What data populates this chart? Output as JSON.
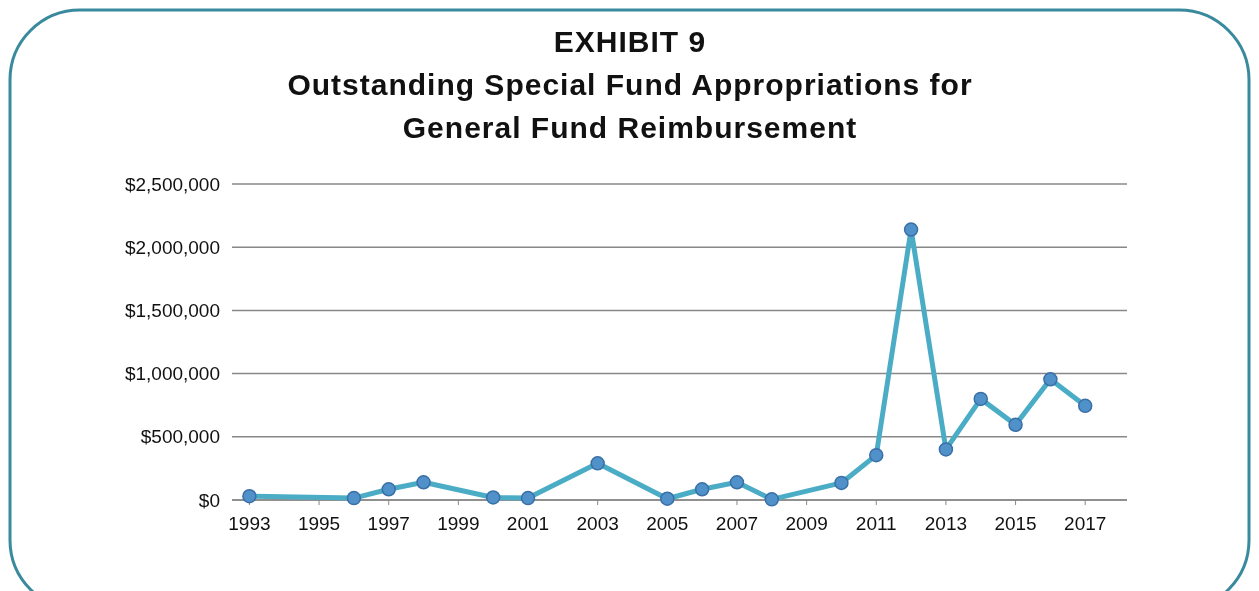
{
  "chart_data": {
    "type": "line",
    "title": "EXHIBIT 9\nOutstanding Special Fund Appropriations for\nGeneral Fund Reimbursement",
    "x": [
      1993,
      1996,
      1997,
      1998,
      2000,
      2001,
      2003,
      2005,
      2006,
      2007,
      2008,
      2010,
      2011,
      2012,
      2013,
      2014,
      2015,
      2016,
      2017
    ],
    "series": [
      {
        "color": "#4bacc6",
        "values": [
          30000,
          15000,
          85000,
          140000,
          20000,
          15000,
          290000,
          10000,
          85000,
          140000,
          5000,
          135000,
          355000,
          2140000,
          400000,
          800000,
          595000,
          955000,
          745000
        ]
      }
    ],
    "xlim": [
      1992.5,
      2018.2
    ],
    "xticks": [
      1993,
      1995,
      1997,
      1999,
      2001,
      2003,
      2005,
      2007,
      2009,
      2011,
      2013,
      2015,
      2017
    ],
    "ylim": [
      0,
      2500000
    ],
    "yticks": [
      {
        "value": 0,
        "label": "$0"
      },
      {
        "value": 500000,
        "label": "$500,000"
      },
      {
        "value": 1000000,
        "label": "$1,000,000"
      },
      {
        "value": 1500000,
        "label": "$1,500,000"
      },
      {
        "value": 2000000,
        "label": "$2,000,000"
      },
      {
        "value": 2500000,
        "label": "$2,500,000"
      }
    ],
    "grid": "y",
    "marker": "circle",
    "line_style": "solid"
  }
}
